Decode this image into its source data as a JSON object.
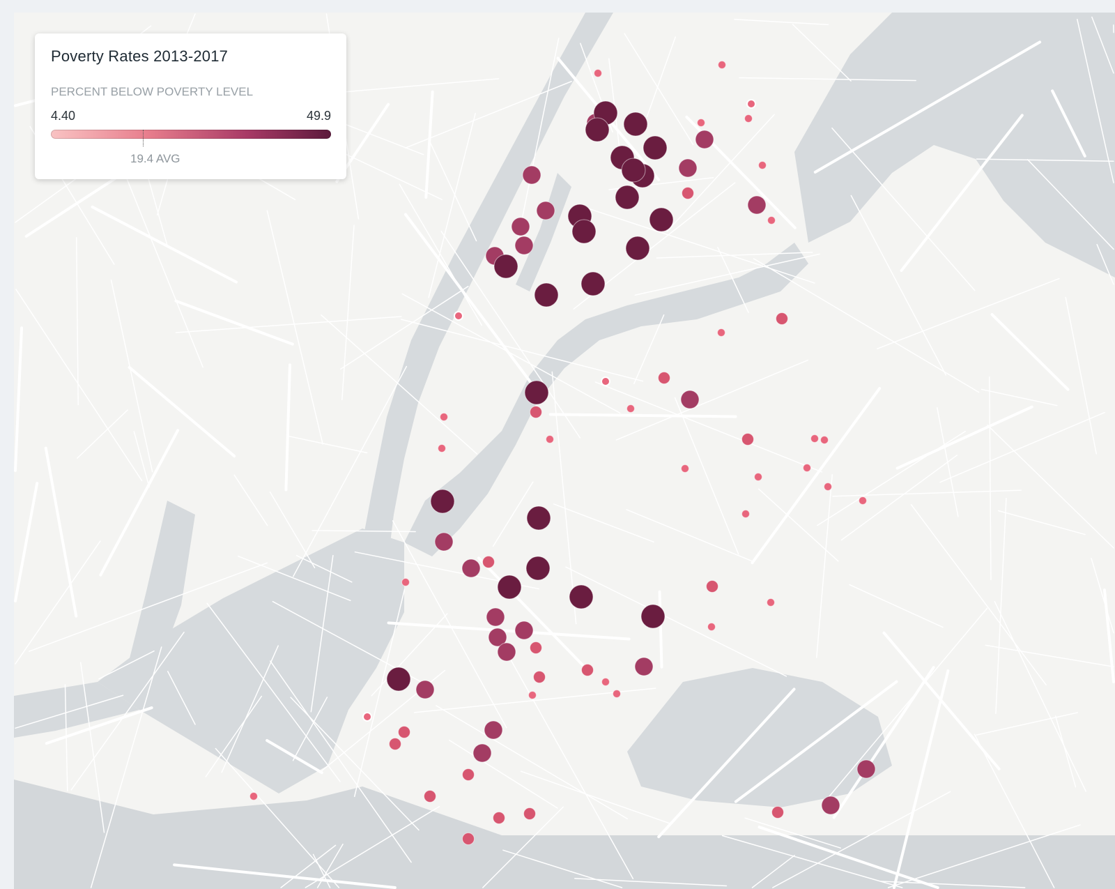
{
  "legend": {
    "title": "Poverty Rates 2013-2017",
    "subtitle": "PERCENT BELOW POVERTY LEVEL",
    "min_label": "4.40",
    "max_label": "49.9",
    "avg_label": "19.4 AVG",
    "min": 4.4,
    "max": 49.9,
    "avg": 19.4
  },
  "colors": {
    "low": "#f9c3c3",
    "mid": "#e77d8c",
    "high": "#a83a66",
    "max": "#5c1a3c",
    "water": "#d6dadd",
    "land": "#f4f4f2",
    "road": "#ffffff"
  },
  "points_rates": {
    "small": 9,
    "small_medium": 15,
    "medium": 27,
    "large": 42
  }
}
